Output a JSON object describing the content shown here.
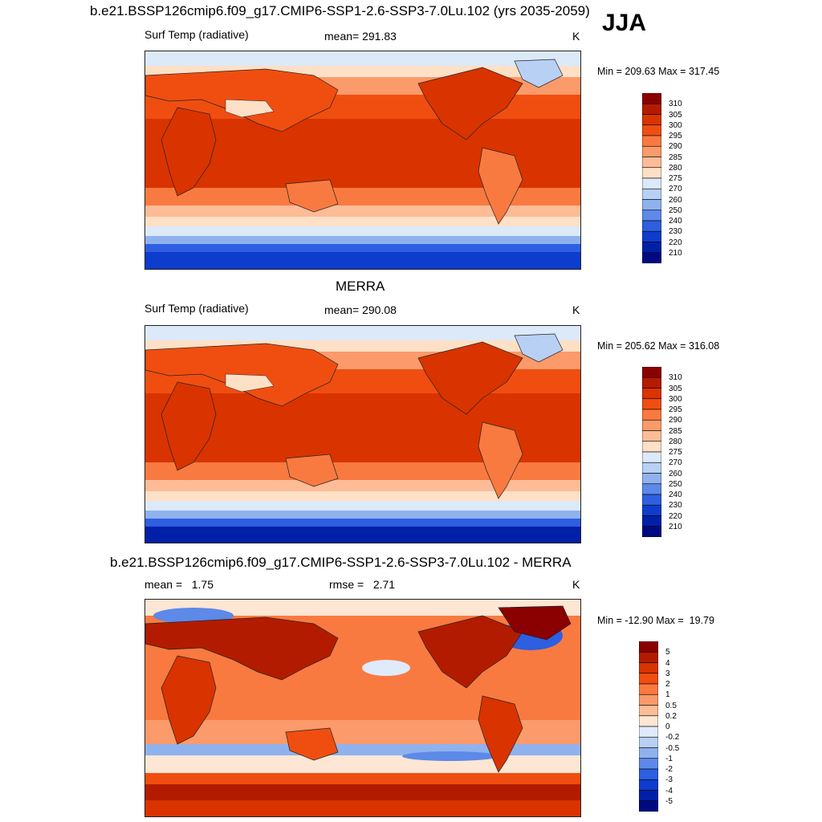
{
  "season": "JJA",
  "panels": [
    {
      "title": "b.e21.BSSP126cmip6.f09_g17.CMIP6-SSP1-2.6-SSP3-7.0Lu.102 (yrs 2035-2059)",
      "left": "Surf Temp (radiative)",
      "center": "mean= 291.83",
      "units": "K",
      "minmax": "Min = 209.63 Max = 317.45",
      "colorbar_labels": [
        "310",
        "305",
        "300",
        "295",
        "290",
        "285",
        "280",
        "275",
        "270",
        "260",
        "250",
        "240",
        "230",
        "220",
        "210"
      ]
    },
    {
      "title": "MERRA",
      "left": "Surf Temp (radiative)",
      "center": "mean= 290.08",
      "units": "K",
      "minmax": "Min = 205.62 Max = 316.08",
      "colorbar_labels": [
        "310",
        "305",
        "300",
        "295",
        "290",
        "285",
        "280",
        "275",
        "270",
        "260",
        "250",
        "240",
        "230",
        "220",
        "210"
      ]
    },
    {
      "title": "b.e21.BSSP126cmip6.f09_g17.CMIP6-SSP1-2.6-SSP3-7.0Lu.102 - MERRA",
      "left": "mean =   1.75",
      "center": "rmse =   2.71",
      "units": "K",
      "minmax": "Min = -12.90 Max =  19.79",
      "colorbar_labels": [
        "5",
        "4",
        "3",
        "2",
        "1",
        "0.5",
        "0.2",
        "0",
        "-0.2",
        "-0.5",
        "-1",
        "-2",
        "-3",
        "-4",
        "-5"
      ]
    }
  ],
  "colors": {
    "abs_scale": [
      "#8b0000",
      "#b31b00",
      "#d93300",
      "#f04e10",
      "#f97a40",
      "#fb9a6a",
      "#fcbc97",
      "#fde0c6",
      "#dce9f9",
      "#b8d0f3",
      "#8fb2ee",
      "#5d89e8",
      "#2d5fe0",
      "#0e3ccc",
      "#0020a8",
      "#000a80"
    ],
    "diff_scale": [
      "#8b0000",
      "#b31b00",
      "#d93300",
      "#f04e10",
      "#f97a40",
      "#fb9a6a",
      "#fcbc97",
      "#fde6d3",
      "#dfeafb",
      "#b8d0f3",
      "#8fb2ee",
      "#5d89e8",
      "#2d5fe0",
      "#0e3ccc",
      "#0020a8",
      "#000a80"
    ]
  }
}
